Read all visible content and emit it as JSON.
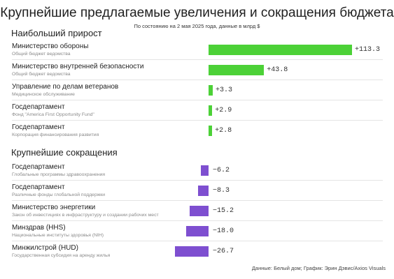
{
  "title": "Крупнейшие предлагаемые увеличения и сокращения бюджета",
  "subtitle": "По состоянию на 2 мая 2025 года, данные в млрд $",
  "source": "Данные: Белый дом; График: Эрин Дэвис/Axios Visuals",
  "colors": {
    "increase": "#4cd137",
    "decrease": "#7e4fd0"
  },
  "chart_data": {
    "type": "bar",
    "orientation": "horizontal",
    "sections": [
      {
        "title": "Наибольший прирост",
        "items": [
          {
            "label": "Министерство обороны",
            "sublabel": "Общий бюджет ведомства",
            "value": 113.3,
            "display": "+113.3"
          },
          {
            "label": "Министерство внутренней безопасности",
            "sublabel": "Общий бюджет ведомства",
            "value": 43.8,
            "display": "+43.8"
          },
          {
            "label": "Управление по делам ветеранов",
            "sublabel": "Медицинское обслуживание",
            "value": 3.3,
            "display": "+3.3"
          },
          {
            "label": "Госдепартамент",
            "sublabel": "Фонд \"America First Opportunity Fund\"",
            "value": 2.9,
            "display": "+2.9"
          },
          {
            "label": "Госдепартамент",
            "sublabel": "Корпорация финансирования развития",
            "value": 2.8,
            "display": "+2.8"
          }
        ]
      },
      {
        "title": "Крупнейшие сокращения",
        "items": [
          {
            "label": "Госдепартамент",
            "sublabel": "Глобальные программы здравоохранения",
            "value": -6.2,
            "display": "−6.2"
          },
          {
            "label": "Госдепартамент",
            "sublabel": "Различные фонды глобальной поддержки",
            "value": -8.3,
            "display": "−8.3"
          },
          {
            "label": "Министерство энергетики",
            "sublabel": "Закон об инвестициях в инфраструктуру и создании рабочих мест",
            "value": -15.2,
            "display": "−15.2"
          },
          {
            "label": "Минздрав (HHS)",
            "sublabel": "Национальные институты здоровья (NIH)",
            "value": -18.0,
            "display": "−18.0"
          },
          {
            "label": "Минжилстрой (HUD)",
            "sublabel": "Государственная субсидия на аренду жилья",
            "value": -26.7,
            "display": "−26.7"
          }
        ]
      }
    ]
  }
}
